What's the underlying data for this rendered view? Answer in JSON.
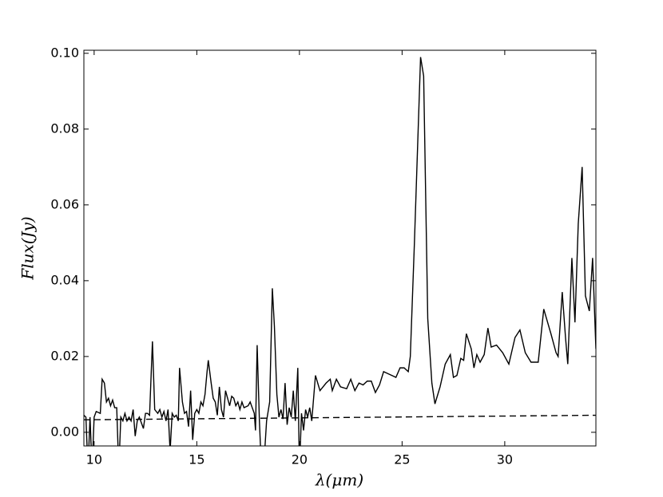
{
  "chart_data": {
    "type": "line",
    "xlabel": "λ(μm)",
    "ylabel": "Flux(Jy)",
    "xlim": [
      9.5,
      34.44
    ],
    "ylim": [
      -0.0036,
      0.1008
    ],
    "xticks": [
      10,
      15,
      20,
      25,
      30
    ],
    "yticks": [
      {
        "value": 0,
        "label": "0.00"
      },
      {
        "value": 0.02,
        "label": "0.02"
      },
      {
        "value": 0.04,
        "label": "0.04"
      },
      {
        "value": 0.06,
        "label": "0.06"
      },
      {
        "value": 0.08,
        "label": "0.08"
      },
      {
        "value": 0.1,
        "label": "0.10"
      }
    ],
    "series": [
      {
        "color": "#000000",
        "linestyle": "solid",
        "x": [
          9.5,
          9.6,
          9.7,
          9.8,
          9.9,
          10.0,
          10.1,
          10.3,
          10.39,
          10.5,
          10.6,
          10.7,
          10.8,
          10.9,
          11.0,
          11.1,
          11.2,
          11.3,
          11.4,
          11.5,
          11.6,
          11.7,
          11.8,
          11.9,
          12.0,
          12.1,
          12.2,
          12.4,
          12.5,
          12.6,
          12.7,
          12.84,
          12.95,
          13.1,
          13.2,
          13.3,
          13.4,
          13.5,
          13.6,
          13.7,
          13.8,
          13.9,
          14.0,
          14.1,
          14.16,
          14.3,
          14.4,
          14.5,
          14.6,
          14.7,
          14.8,
          14.9,
          15.0,
          15.1,
          15.2,
          15.3,
          15.4,
          15.5,
          15.56,
          15.7,
          15.8,
          15.9,
          16.0,
          16.1,
          16.2,
          16.3,
          16.4,
          16.5,
          16.6,
          16.7,
          16.8,
          16.9,
          17.0,
          17.1,
          17.2,
          17.3,
          17.5,
          17.6,
          17.8,
          17.86,
          17.94,
          18.05,
          18.15,
          18.25,
          18.4,
          18.55,
          18.68,
          18.78,
          18.9,
          19.0,
          19.1,
          19.2,
          19.3,
          19.4,
          19.5,
          19.6,
          19.7,
          19.8,
          19.92,
          20.0,
          20.1,
          20.2,
          20.3,
          20.4,
          20.5,
          20.6,
          20.78,
          21.0,
          21.3,
          21.5,
          21.6,
          21.8,
          22.0,
          22.3,
          22.5,
          22.7,
          22.9,
          23.1,
          23.3,
          23.5,
          23.7,
          23.9,
          24.1,
          24.3,
          24.5,
          24.7,
          24.9,
          25.1,
          25.3,
          25.4,
          25.6,
          25.9,
          26.05,
          26.25,
          26.45,
          26.6,
          26.85,
          27.1,
          27.35,
          27.5,
          27.67,
          27.86,
          28.0,
          28.13,
          28.37,
          28.5,
          28.64,
          28.8,
          29.0,
          29.18,
          29.34,
          29.6,
          29.9,
          30.2,
          30.5,
          30.74,
          31.0,
          31.28,
          31.63,
          31.9,
          32.25,
          32.5,
          32.6,
          32.8,
          32.96,
          33.07,
          33.27,
          33.42,
          33.58,
          33.77,
          33.93,
          34.12,
          34.28,
          34.44
        ],
        "values": [
          0.0045,
          0.004,
          -0.01,
          0.004,
          -0.01,
          0.004,
          0.0055,
          0.005,
          0.014,
          0.013,
          0.008,
          0.009,
          0.007,
          0.0085,
          0.0065,
          0.0065,
          -0.01,
          0.004,
          0.003,
          0.005,
          0.003,
          0.004,
          0.003,
          0.006,
          -0.001,
          0.003,
          0.004,
          0.001,
          0.005,
          0.005,
          0.0045,
          0.024,
          0.006,
          0.005,
          0.006,
          0.004,
          0.0055,
          0.003,
          0.006,
          -0.005,
          0.005,
          0.004,
          0.0045,
          0.003,
          0.017,
          0.008,
          0.005,
          0.0055,
          0.0015,
          0.011,
          -0.002,
          0.005,
          0.006,
          0.005,
          0.008,
          0.007,
          0.01,
          0.016,
          0.019,
          0.013,
          0.009,
          0.008,
          0.0045,
          0.012,
          0.006,
          0.004,
          0.011,
          0.009,
          0.007,
          0.0095,
          0.009,
          0.007,
          0.008,
          0.006,
          0.008,
          0.0065,
          0.007,
          0.008,
          0.005,
          0.0005,
          0.023,
          0.003,
          -0.01,
          -0.01,
          0.003,
          0.008,
          0.038,
          0.028,
          0.01,
          0.004,
          0.006,
          0.0035,
          0.013,
          0.002,
          0.0065,
          0.004,
          0.011,
          0.003,
          0.017,
          -0.01,
          0.005,
          0.0005,
          0.006,
          0.004,
          0.0065,
          0.003,
          0.015,
          0.011,
          0.013,
          0.014,
          0.011,
          0.014,
          0.012,
          0.0115,
          0.014,
          0.011,
          0.013,
          0.0125,
          0.0135,
          0.0135,
          0.0105,
          0.0125,
          0.016,
          0.0155,
          0.015,
          0.0145,
          0.017,
          0.017,
          0.016,
          0.02,
          0.05,
          0.099,
          0.094,
          0.03,
          0.013,
          0.0075,
          0.012,
          0.018,
          0.0205,
          0.0145,
          0.015,
          0.0195,
          0.019,
          0.026,
          0.022,
          0.017,
          0.0205,
          0.0185,
          0.0205,
          0.0275,
          0.0225,
          0.023,
          0.021,
          0.018,
          0.025,
          0.027,
          0.021,
          0.0185,
          0.0185,
          0.0325,
          0.026,
          0.021,
          0.02,
          0.037,
          0.025,
          0.018,
          0.046,
          0.029,
          0.055,
          0.07,
          0.036,
          0.032,
          0.046,
          0.022
        ]
      },
      {
        "color": "#000000",
        "linestyle": "dashed",
        "x": [
          9.5,
          34.44
        ],
        "values": [
          0.0033,
          0.0045
        ]
      }
    ]
  }
}
